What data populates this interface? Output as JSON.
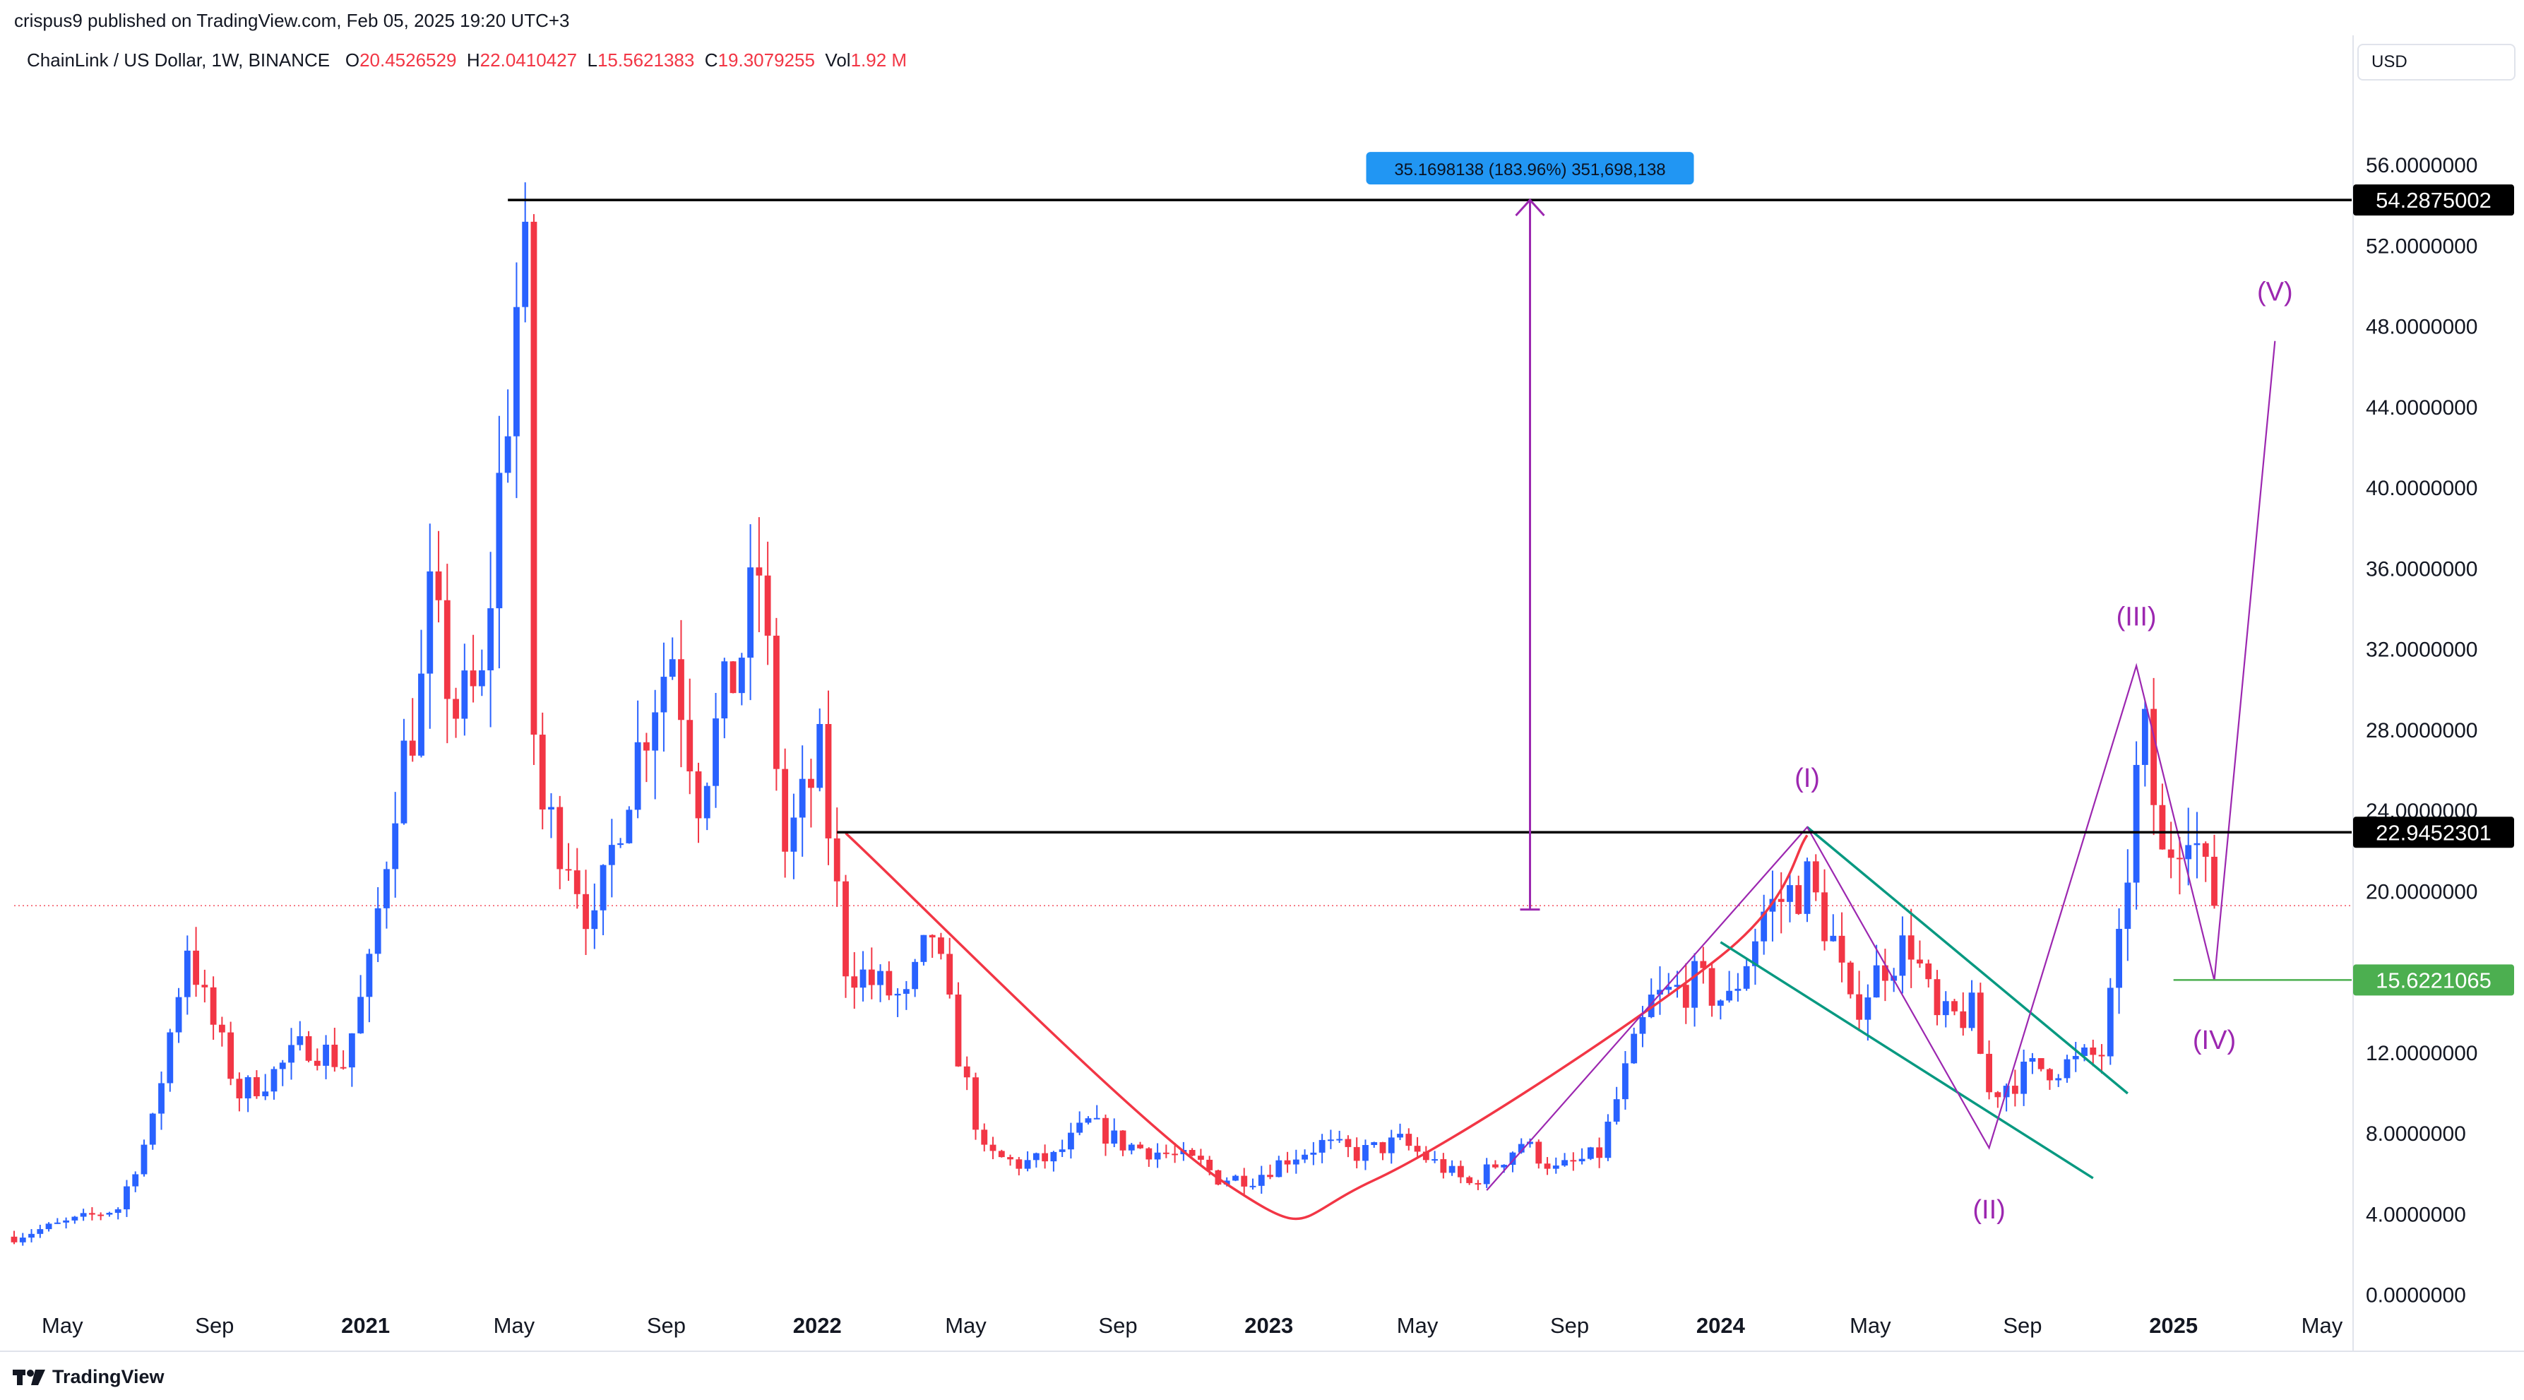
{
  "header": {
    "published_line": "crispus9 published on TradingView.com, Feb 05, 2025 19:20 UTC+3",
    "symbol_line": "ChainLink / US Dollar, 1W, BINANCE",
    "ohlc": {
      "o_label": "O",
      "o_value": "20.4526529",
      "h_label": "H",
      "h_value": "22.0410427",
      "l_label": "L",
      "l_value": "15.5621383",
      "c_label": "C",
      "c_value": "19.3079255",
      "vol_label": "Vol",
      "vol_value": "1.92 M"
    }
  },
  "currency_button": "USD",
  "footer": {
    "brand": "TradingView"
  },
  "colors": {
    "up": "#2962ff",
    "down": "#f23645",
    "wave": "#9c27b0",
    "cup": "#f23645",
    "channel": "#089981",
    "support": "#4caf50",
    "measure_bg": "#2196f3",
    "hline": "#000000"
  },
  "chart_data": {
    "type": "candlestick",
    "timeframe": "1W",
    "ylim": [
      -2.5,
      60
    ],
    "xlim": [
      "2020-03-23",
      "2025-05-25"
    ],
    "y_ticks": [
      "0.0000000",
      "4.0000000",
      "8.0000000",
      "12.0000000",
      "16.0000000",
      "20.0000000",
      "24.0000000",
      "28.0000000",
      "32.0000000",
      "36.0000000",
      "40.0000000",
      "44.0000000",
      "48.0000000",
      "52.0000000",
      "56.0000000"
    ],
    "x_ticks": [
      {
        "label": "May",
        "date": "2020-05-01",
        "bold": false
      },
      {
        "label": "Sep",
        "date": "2020-09-01",
        "bold": false
      },
      {
        "label": "2021",
        "date": "2021-01-01",
        "bold": true
      },
      {
        "label": "May",
        "date": "2021-05-01",
        "bold": false
      },
      {
        "label": "Sep",
        "date": "2021-09-01",
        "bold": false
      },
      {
        "label": "2022",
        "date": "2022-01-01",
        "bold": true
      },
      {
        "label": "May",
        "date": "2022-05-01",
        "bold": false
      },
      {
        "label": "Sep",
        "date": "2022-09-01",
        "bold": false
      },
      {
        "label": "2023",
        "date": "2023-01-01",
        "bold": true
      },
      {
        "label": "May",
        "date": "2023-05-01",
        "bold": false
      },
      {
        "label": "Sep",
        "date": "2023-09-01",
        "bold": false
      },
      {
        "label": "2024",
        "date": "2024-01-01",
        "bold": true
      },
      {
        "label": "May",
        "date": "2024-05-01",
        "bold": false
      },
      {
        "label": "Sep",
        "date": "2024-09-01",
        "bold": false
      },
      {
        "label": "2025",
        "date": "2025-01-01",
        "bold": true
      },
      {
        "label": "May",
        "date": "2025-05-01",
        "bold": false
      }
    ],
    "price_anchors": [
      [
        "2020-03-23",
        2.9
      ],
      [
        "2020-05-04",
        3.6
      ],
      [
        "2020-06-15",
        4.3
      ],
      [
        "2020-07-13",
        8.5
      ],
      [
        "2020-08-10",
        17.5
      ],
      [
        "2020-08-24",
        14.5
      ],
      [
        "2020-09-21",
        10.0
      ],
      [
        "2020-10-19",
        11.0
      ],
      [
        "2020-11-16",
        12.5
      ],
      [
        "2020-12-14",
        11.5
      ],
      [
        "2021-01-04",
        16.0
      ],
      [
        "2021-01-25",
        25.0
      ],
      [
        "2021-02-15",
        30.0
      ],
      [
        "2021-02-22",
        34.0
      ],
      [
        "2021-03-15",
        29.0
      ],
      [
        "2021-04-05",
        30.0
      ],
      [
        "2021-04-19",
        40.0
      ],
      [
        "2021-05-03",
        49.0
      ],
      [
        "2021-05-10",
        50.0
      ],
      [
        "2021-05-17",
        28.0
      ],
      [
        "2021-05-24",
        24.0
      ],
      [
        "2021-06-14",
        22.0
      ],
      [
        "2021-07-05",
        18.0
      ],
      [
        "2021-07-26",
        24.0
      ],
      [
        "2021-08-23",
        30.0
      ],
      [
        "2021-09-06",
        32.0
      ],
      [
        "2021-09-27",
        25.0
      ],
      [
        "2021-10-11",
        28.0
      ],
      [
        "2021-11-01",
        32.0
      ],
      [
        "2021-11-15",
        36.0
      ],
      [
        "2021-12-06",
        22.0
      ],
      [
        "2022-01-03",
        26.5
      ],
      [
        "2022-01-24",
        16.5
      ],
      [
        "2022-02-14",
        15.5
      ],
      [
        "2022-03-14",
        14.5
      ],
      [
        "2022-04-04",
        18.0
      ],
      [
        "2022-04-25",
        12.0
      ],
      [
        "2022-05-16",
        7.0
      ],
      [
        "2022-06-13",
        6.5
      ],
      [
        "2022-07-11",
        6.8
      ],
      [
        "2022-08-08",
        8.5
      ],
      [
        "2022-09-05",
        7.5
      ],
      [
        "2022-10-10",
        7.0
      ],
      [
        "2022-11-07",
        6.5
      ],
      [
        "2022-11-21",
        5.8
      ],
      [
        "2022-12-19",
        5.8
      ],
      [
        "2023-01-16",
        6.8
      ],
      [
        "2023-02-13",
        7.5
      ],
      [
        "2023-03-13",
        7.0
      ],
      [
        "2023-04-17",
        7.6
      ],
      [
        "2023-06-12",
        5.5
      ],
      [
        "2023-07-10",
        6.8
      ],
      [
        "2023-07-24",
        7.6
      ],
      [
        "2023-08-21",
        6.2
      ],
      [
        "2023-09-25",
        7.0
      ],
      [
        "2023-10-16",
        11.0
      ],
      [
        "2023-11-06",
        14.5
      ],
      [
        "2023-12-11",
        15.5
      ],
      [
        "2024-01-08",
        14.5
      ],
      [
        "2024-02-05",
        19.0
      ],
      [
        "2024-03-11",
        20.5
      ],
      [
        "2024-04-01",
        17.5
      ],
      [
        "2024-04-15",
        14.0
      ],
      [
        "2024-05-13",
        16.5
      ],
      [
        "2024-06-03",
        17.5
      ],
      [
        "2024-06-24",
        13.5
      ],
      [
        "2024-07-22",
        14.0
      ],
      [
        "2024-08-05",
        10.0
      ],
      [
        "2024-09-09",
        11.2
      ],
      [
        "2024-10-14",
        11.5
      ],
      [
        "2024-11-04",
        12.0
      ],
      [
        "2024-11-18",
        17.0
      ],
      [
        "2024-12-02",
        25.5
      ],
      [
        "2024-12-09",
        27.5
      ],
      [
        "2024-12-23",
        21.5
      ],
      [
        "2025-01-13",
        24.0
      ],
      [
        "2025-01-27",
        20.5
      ],
      [
        "2025-02-03",
        19.3
      ]
    ],
    "series": [
      {
        "name": "ChainLink / US Dollar",
        "last_close": 19.3079255
      }
    ],
    "horizontal_lines": [
      {
        "price": 54.2875002,
        "label": "54.2875002",
        "start": "2021-04-26",
        "color": "#000000"
      },
      {
        "price": 22.9452301,
        "label": "22.9452301",
        "start": "2022-01-17",
        "color": "#000000"
      },
      {
        "price": 15.6221065,
        "label": "15.6221065",
        "start": "2025-01-01",
        "color": "#4caf50"
      }
    ],
    "current_price_line": 19.3079255,
    "measure": {
      "label": "35.1698138 (183.96%) 351,698,138",
      "date": "2023-07-31",
      "from": 19.1176864,
      "to": 54.2875002
    },
    "cup_curve": [
      [
        "2022-01-24",
        22.9
      ],
      [
        "2022-11-28",
        5.5
      ],
      [
        "2023-03-27",
        5.7
      ],
      [
        "2024-01-01",
        16.8
      ],
      [
        "2024-03-11",
        22.8
      ]
    ],
    "channel": [
      {
        "from": [
          "2024-03-11",
          23.2
        ],
        "to": [
          "2024-11-25",
          10.0
        ]
      },
      {
        "from": [
          "2024-01-01",
          17.5
        ],
        "to": [
          "2024-10-28",
          5.8
        ]
      }
    ],
    "elliott_waves": {
      "points": [
        [
          "2023-06-26",
          5.2
        ],
        [
          "2024-03-11",
          23.2
        ],
        [
          "2024-08-05",
          7.3
        ],
        [
          "2024-12-02",
          31.2
        ],
        [
          "2025-02-03",
          15.6
        ],
        [
          "2025-03-24",
          47.3
        ]
      ],
      "labels": [
        {
          "text": "(I)",
          "date": "2024-03-11",
          "price": 25.2
        },
        {
          "text": "(II)",
          "date": "2024-08-05",
          "price": 3.8
        },
        {
          "text": "(III)",
          "date": "2024-12-02",
          "price": 33.2
        },
        {
          "text": "(IV)",
          "date": "2025-02-03",
          "price": 12.2
        },
        {
          "text": "(V)",
          "date": "2025-03-24",
          "price": 49.3
        }
      ]
    }
  }
}
